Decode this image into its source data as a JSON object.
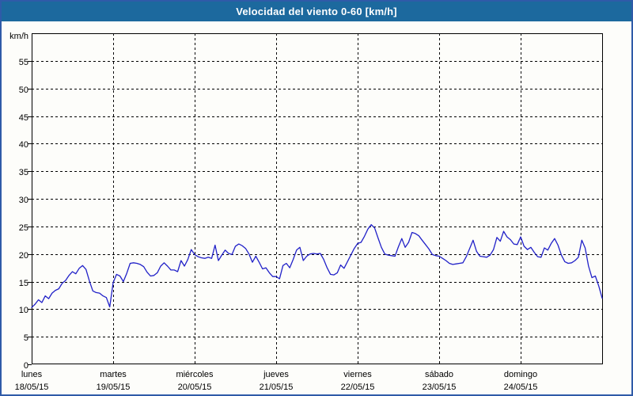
{
  "window": {
    "title": "Velocidad del viento 0-60 [km/h]"
  },
  "colors": {
    "title_bar": "#1c699e",
    "window_border": "#2f5ba8",
    "background": "#fdfdfa",
    "line": "#2121c8",
    "grid": "#000000",
    "text": "#000000"
  },
  "chart_data": {
    "type": "line",
    "title": "Velocidad del viento 0-60 [km/h]",
    "xlabel": "",
    "ylabel": "km/h",
    "ylim": [
      0,
      60
    ],
    "yticks": [
      0,
      5,
      10,
      15,
      20,
      25,
      30,
      35,
      40,
      45,
      50,
      55
    ],
    "grid": true,
    "grid_style": "dashed",
    "legend_position": "none",
    "x_unit": "hours, one point per hour over 7 days",
    "days": [
      {
        "name": "lunes",
        "date": "18/05/15"
      },
      {
        "name": "martes",
        "date": "19/05/15"
      },
      {
        "name": "miércoles",
        "date": "20/05/15"
      },
      {
        "name": "jueves",
        "date": "21/05/15"
      },
      {
        "name": "viernes",
        "date": "22/05/15"
      },
      {
        "name": "sábado",
        "date": "23/05/15"
      },
      {
        "name": "domingo",
        "date": "24/05/15"
      }
    ],
    "series": [
      {
        "name": "Velocidad del viento",
        "color": "#2121c8",
        "values": [
          10.3,
          10.9,
          11.7,
          11.2,
          12.4,
          11.9,
          12.9,
          13.4,
          13.7,
          14.7,
          15.2,
          16.1,
          16.8,
          16.4,
          17.4,
          17.9,
          17.2,
          15.1,
          13.3,
          13.0,
          12.9,
          12.4,
          12.1,
          10.4,
          14.8,
          16.3,
          16.0,
          15.0,
          16.5,
          18.3,
          18.4,
          18.3,
          18.1,
          17.7,
          16.7,
          16.0,
          16.1,
          16.6,
          17.8,
          18.4,
          17.8,
          17.1,
          17.1,
          16.8,
          18.8,
          17.8,
          19.0,
          20.8,
          19.9,
          19.5,
          19.3,
          19.2,
          19.4,
          19.2,
          21.6,
          18.8,
          19.8,
          20.7,
          20.1,
          19.9,
          21.4,
          21.8,
          21.5,
          21.0,
          20.0,
          18.5,
          19.6,
          18.5,
          17.3,
          17.5,
          16.6,
          15.9,
          15.9,
          15.5,
          17.9,
          18.3,
          17.5,
          19.0,
          20.7,
          21.2,
          18.8,
          19.6,
          20.0,
          20.1,
          20.0,
          20.1,
          19.0,
          17.5,
          16.3,
          16.2,
          16.6,
          18.0,
          17.4,
          18.6,
          19.8,
          21.0,
          21.9,
          22.1,
          23.2,
          24.5,
          25.3,
          24.7,
          22.9,
          21.2,
          20.0,
          19.8,
          19.7,
          19.6,
          21.3,
          22.8,
          21.2,
          22.1,
          23.9,
          23.7,
          23.3,
          22.5,
          21.7,
          20.9,
          19.9,
          19.7,
          19.6,
          19.2,
          18.8,
          18.3,
          18.1,
          18.2,
          18.3,
          18.4,
          19.5,
          21.0,
          22.5,
          20.5,
          19.6,
          19.5,
          19.4,
          19.8,
          20.8,
          23.0,
          22.3,
          24.1,
          23.1,
          22.6,
          21.8,
          21.7,
          23.1,
          21.4,
          20.8,
          21.2,
          20.3,
          19.5,
          19.4,
          21.1,
          20.7,
          21.9,
          22.8,
          21.6,
          19.8,
          18.6,
          18.3,
          18.4,
          18.8,
          19.4,
          22.5,
          21.1,
          17.8,
          15.7,
          16.0,
          14.2,
          12.0
        ]
      }
    ]
  }
}
